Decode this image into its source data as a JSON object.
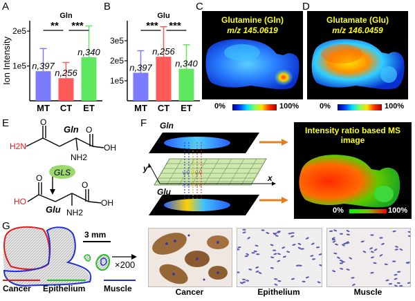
{
  "panels": {
    "A": "A",
    "B": "B",
    "C": "C",
    "D": "D",
    "E": "E",
    "F": "F",
    "G": "G"
  },
  "colors": {
    "mt": "#7b7bff",
    "ct": "#ff5a5a",
    "et": "#5fe85f",
    "cancer": "#e01b1b",
    "epithelium": "#1fbf1f",
    "muscle": "#1f2fd0"
  },
  "chart_data": [
    {
      "type": "bar",
      "title": "Gln",
      "ylabel": "Ion Intensity",
      "categories": [
        "MT",
        "CT",
        "ET"
      ],
      "values": [
        85000,
        65000,
        125000
      ],
      "error": [
        65000,
        45000,
        90000
      ],
      "ylim": [
        0,
        230000
      ],
      "yticks": [
        "1e5",
        "2e5"
      ],
      "n_labels": [
        "n,397",
        "n,256",
        "n,340"
      ],
      "significance": [
        "**",
        "***"
      ]
    },
    {
      "type": "bar",
      "title": "Glu",
      "ylabel": "",
      "categories": [
        "MT",
        "CT",
        "ET"
      ],
      "values": [
        140000,
        220000,
        160000
      ],
      "error": [
        110000,
        150000,
        120000
      ],
      "ylim": [
        0,
        400000
      ],
      "yticks": [
        "1e5",
        "2e5",
        "3e5"
      ],
      "n_labels": [
        "n,397",
        "n,256",
        "n,340"
      ],
      "significance": [
        "***",
        "***"
      ]
    }
  ],
  "ms_images": [
    {
      "title": "Glutamine (Gln)",
      "mz": "m/z 145.0619"
    },
    {
      "title": "Glutamate (Glu)",
      "mz": "m/z 146.0459"
    }
  ],
  "colorbar": {
    "min": "0%",
    "max": "100%"
  },
  "structure": {
    "gln": "Gln",
    "glu": "Glu",
    "gls": "GLS",
    "h2n": "H2N",
    "nh2": "NH2",
    "oh": "OH",
    "ho": "HO",
    "o": "O"
  },
  "fpanel": {
    "gln": "Gln",
    "glu": "Glu",
    "x": "x",
    "y": "y",
    "ratio_title": "Intensity ratio based MS image",
    "cb_min": "0%",
    "cb_max": "100%"
  },
  "gpanel": {
    "scale": "3 mm",
    "magnification": "×200",
    "legend": [
      "Cancer",
      "Epithelium",
      "Muscle"
    ],
    "captions": [
      "Cancer",
      "Epithelium",
      "Muscle"
    ]
  }
}
